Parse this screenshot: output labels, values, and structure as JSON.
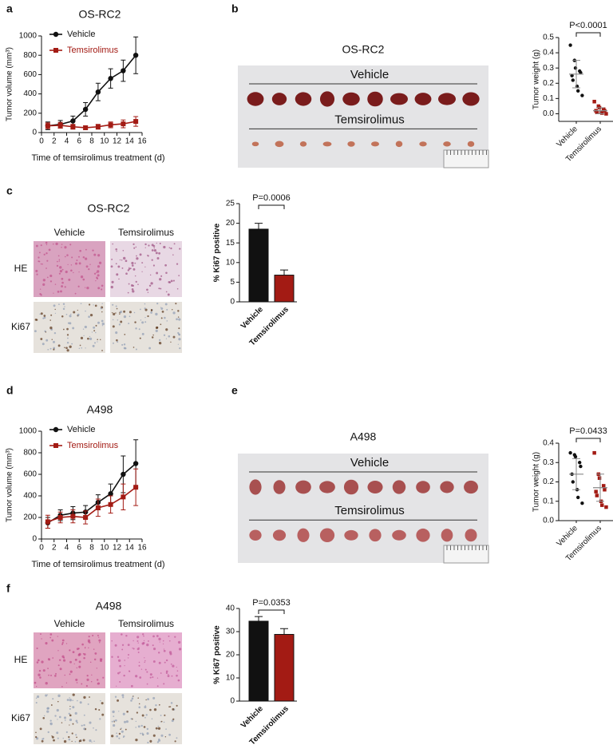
{
  "panel_labels": [
    "a",
    "b",
    "c",
    "d",
    "e",
    "f"
  ],
  "chart_data": [
    {
      "type": "line",
      "title": "OS-RC2",
      "xlabel": "Time of temsirolimus treatment (d)",
      "ylabel": "Tumor volume (mm³)",
      "x": [
        1,
        3,
        5,
        7,
        9,
        11,
        13,
        15
      ],
      "xlim": [
        0,
        16
      ],
      "xticks": [
        0,
        2,
        4,
        6,
        8,
        10,
        12,
        14,
        16
      ],
      "ylim": [
        0,
        1000
      ],
      "yticks": [
        0,
        200,
        400,
        600,
        800,
        1000
      ],
      "legend": "upper left",
      "series": [
        {
          "name": "Vehicle",
          "color": "#111111",
          "marker": "circle",
          "values": [
            70,
            85,
            120,
            240,
            420,
            560,
            640,
            800
          ],
          "errors": [
            40,
            40,
            50,
            70,
            90,
            100,
            110,
            190
          ]
        },
        {
          "name": "Temsirolimus",
          "color": "#a31b14",
          "marker": "square",
          "values": [
            70,
            75,
            60,
            50,
            60,
            80,
            90,
            115
          ],
          "errors": [
            30,
            30,
            25,
            20,
            25,
            30,
            40,
            50
          ]
        }
      ]
    },
    {
      "type": "dot",
      "ylabel": "Tumor weight (g)",
      "categories": [
        "Vehicle",
        "Temsirolimus"
      ],
      "colors": [
        "#111111",
        "#a31b14"
      ],
      "points": [
        [
          0.45,
          0.35,
          0.3,
          0.28,
          0.27,
          0.25,
          0.22,
          0.18,
          0.15,
          0.12
        ],
        [
          0.08,
          0.05,
          0.04,
          0.03,
          0.02,
          0.02,
          0.01,
          0.01,
          0.005,
          0.0
        ]
      ],
      "means": [
        0.26,
        0.02
      ],
      "sd": [
        0.09,
        0.02
      ],
      "ylim": [
        -0.05,
        0.5
      ],
      "yticks": [
        {
          "value": 0,
          "label": "0.0"
        },
        0.1,
        0.2,
        0.3,
        0.4,
        0.5
      ],
      "annotation": "P<0.0001"
    },
    {
      "type": "bar",
      "ylabel": "% Ki67 positive",
      "categories": [
        "Vehicle",
        "Temsirolimus"
      ],
      "colors": [
        "#111111",
        "#a31b14"
      ],
      "values": [
        18.5,
        6.8
      ],
      "errors": [
        1.5,
        1.3
      ],
      "ylim": [
        0,
        25
      ],
      "yticks": [
        0,
        5,
        10,
        15,
        20,
        25
      ],
      "annotation": "P=0.0006"
    },
    {
      "type": "line",
      "title": "A498",
      "xlabel": "Time of temsirolimus treatment (d)",
      "ylabel": "Tumor volume (mm³)",
      "x": [
        1,
        3,
        5,
        7,
        9,
        11,
        13,
        15
      ],
      "xlim": [
        0,
        16
      ],
      "xticks": [
        0,
        2,
        4,
        6,
        8,
        10,
        12,
        14,
        16
      ],
      "ylim": [
        0,
        1000
      ],
      "yticks": [
        0,
        200,
        400,
        600,
        800,
        1000
      ],
      "legend": "upper left",
      "series": [
        {
          "name": "Vehicle",
          "color": "#111111",
          "marker": "circle",
          "values": [
            150,
            220,
            240,
            250,
            340,
            420,
            600,
            700
          ],
          "errors": [
            50,
            50,
            60,
            60,
            70,
            90,
            170,
            220
          ]
        },
        {
          "name": "Temsirolimus",
          "color": "#a31b14",
          "marker": "square",
          "values": [
            160,
            200,
            210,
            200,
            290,
            320,
            390,
            480
          ],
          "errors": [
            60,
            50,
            60,
            60,
            80,
            80,
            120,
            170
          ]
        }
      ]
    },
    {
      "type": "dot",
      "ylabel": "Tumor weight (g)",
      "categories": [
        "Vehicle",
        "Temsirolimus"
      ],
      "colors": [
        "#111111",
        "#a31b14"
      ],
      "points": [
        [
          0.35,
          0.34,
          0.33,
          0.3,
          0.28,
          0.24,
          0.2,
          0.16,
          0.12,
          0.09
        ],
        [
          0.35,
          0.24,
          0.22,
          0.18,
          0.16,
          0.15,
          0.13,
          0.1,
          0.08,
          0.07
        ]
      ],
      "means": [
        0.24,
        0.17
      ],
      "sd": [
        0.08,
        0.07
      ],
      "ylim": [
        0,
        0.4
      ],
      "yticks": [
        {
          "value": 0,
          "label": "0.0"
        },
        0.1,
        0.2,
        0.3,
        0.4
      ],
      "annotation": "P=0.0433"
    },
    {
      "type": "bar",
      "ylabel": "% Ki67 positive",
      "categories": [
        "Vehicle",
        "Temsirolimus"
      ],
      "colors": [
        "#111111",
        "#a31b14"
      ],
      "values": [
        34.5,
        28.8
      ],
      "errors": [
        2,
        2.5
      ],
      "ylim": [
        0,
        40
      ],
      "yticks": [
        0,
        10,
        20,
        30,
        40
      ],
      "annotation": "P=0.0353"
    }
  ],
  "photos": [
    {
      "type": "gross",
      "title": "OS-RC2",
      "groups": [
        "Vehicle",
        "Temsirolimus"
      ]
    },
    {
      "type": "histology",
      "title": "OS-RC2",
      "columns": [
        "Vehicle",
        "Temsirolimus"
      ],
      "rows": [
        "HE",
        "Ki67"
      ]
    },
    {
      "type": "gross",
      "title": "A498",
      "groups": [
        "Vehicle",
        "Temsirolimus"
      ]
    },
    {
      "type": "histology",
      "title": "A498",
      "columns": [
        "Vehicle",
        "Temsirolimus"
      ],
      "rows": [
        "HE",
        "Ki67"
      ]
    }
  ]
}
